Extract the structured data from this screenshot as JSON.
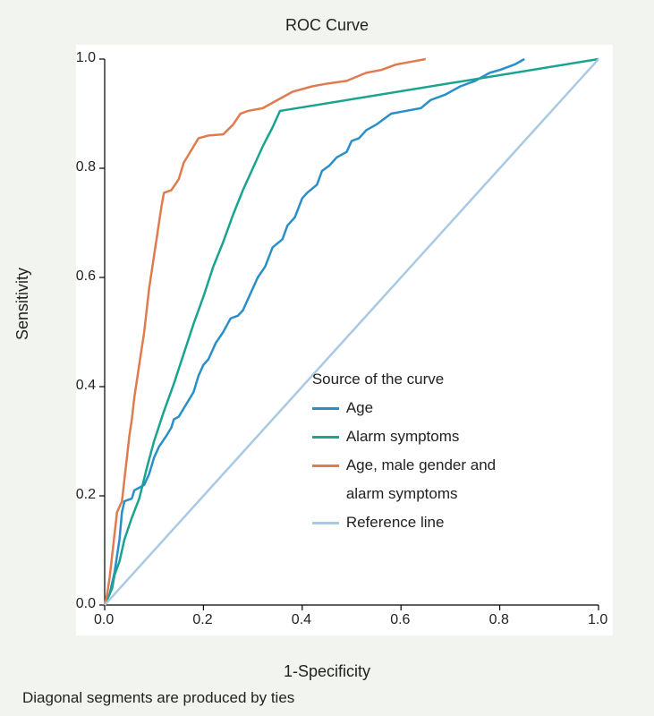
{
  "chart": {
    "type": "line",
    "title": "ROC Curve",
    "title_fontsize": 18,
    "xlabel": "1-Specificity",
    "ylabel": "Sensitivity",
    "label_fontsize": 18,
    "tick_fontsize": 16,
    "caption": "Diagonal segments are produced by ties",
    "caption_fontsize": 17,
    "background_color": "#f2f4f0",
    "plot_background": "#ffffff",
    "axis_color": "#000000",
    "xlim": [
      0.0,
      1.0
    ],
    "ylim": [
      0.0,
      1.0
    ],
    "x_ticks": [
      0.0,
      0.2,
      0.4,
      0.6,
      0.8,
      1.0
    ],
    "y_ticks": [
      0.0,
      0.2,
      0.4,
      0.6,
      0.8,
      1.0
    ],
    "tick_labels_x": [
      "0.0",
      "0.2",
      "0.4",
      "0.6",
      "0.8",
      "1.0"
    ],
    "tick_labels_y": [
      "0.0",
      "0.2",
      "0.4",
      "0.6",
      "0.8",
      "1.0"
    ],
    "line_width": 2.5,
    "legend": {
      "title": "Source of the curve",
      "items": [
        {
          "label": "Age",
          "color": "#2a8fc9"
        },
        {
          "label": "Alarm symptoms",
          "color": "#1aa38f"
        },
        {
          "label": "Age, male gender and",
          "color": "#e07b4f"
        },
        {
          "label_cont": "alarm symptoms"
        },
        {
          "label": "Reference line",
          "color": "#a9c9e4"
        }
      ],
      "fontsize": 17
    },
    "series": [
      {
        "name": "Age",
        "color": "#2a8fc9",
        "points": [
          [
            0.0,
            0.0
          ],
          [
            0.01,
            0.02
          ],
          [
            0.02,
            0.06
          ],
          [
            0.025,
            0.09
          ],
          [
            0.03,
            0.12
          ],
          [
            0.035,
            0.17
          ],
          [
            0.04,
            0.19
          ],
          [
            0.055,
            0.195
          ],
          [
            0.06,
            0.21
          ],
          [
            0.07,
            0.215
          ],
          [
            0.08,
            0.22
          ],
          [
            0.09,
            0.24
          ],
          [
            0.1,
            0.27
          ],
          [
            0.11,
            0.29
          ],
          [
            0.125,
            0.31
          ],
          [
            0.135,
            0.325
          ],
          [
            0.14,
            0.34
          ],
          [
            0.15,
            0.345
          ],
          [
            0.16,
            0.36
          ],
          [
            0.18,
            0.39
          ],
          [
            0.19,
            0.42
          ],
          [
            0.2,
            0.44
          ],
          [
            0.21,
            0.45
          ],
          [
            0.225,
            0.48
          ],
          [
            0.24,
            0.5
          ],
          [
            0.255,
            0.525
          ],
          [
            0.27,
            0.53
          ],
          [
            0.28,
            0.54
          ],
          [
            0.3,
            0.58
          ],
          [
            0.31,
            0.6
          ],
          [
            0.325,
            0.62
          ],
          [
            0.34,
            0.655
          ],
          [
            0.36,
            0.67
          ],
          [
            0.37,
            0.695
          ],
          [
            0.385,
            0.71
          ],
          [
            0.4,
            0.745
          ],
          [
            0.41,
            0.755
          ],
          [
            0.43,
            0.77
          ],
          [
            0.44,
            0.795
          ],
          [
            0.455,
            0.805
          ],
          [
            0.47,
            0.82
          ],
          [
            0.49,
            0.83
          ],
          [
            0.5,
            0.85
          ],
          [
            0.515,
            0.855
          ],
          [
            0.53,
            0.87
          ],
          [
            0.55,
            0.88
          ],
          [
            0.58,
            0.9
          ],
          [
            0.61,
            0.905
          ],
          [
            0.64,
            0.91
          ],
          [
            0.66,
            0.925
          ],
          [
            0.69,
            0.935
          ],
          [
            0.72,
            0.95
          ],
          [
            0.75,
            0.96
          ],
          [
            0.78,
            0.975
          ],
          [
            0.8,
            0.98
          ],
          [
            0.83,
            0.99
          ],
          [
            0.85,
            1.0
          ]
        ]
      },
      {
        "name": "Alarm symptoms",
        "color": "#1aa38f",
        "points": [
          [
            0.0,
            0.0
          ],
          [
            0.015,
            0.03
          ],
          [
            0.02,
            0.055
          ],
          [
            0.03,
            0.08
          ],
          [
            0.04,
            0.12
          ],
          [
            0.055,
            0.16
          ],
          [
            0.07,
            0.195
          ],
          [
            0.085,
            0.25
          ],
          [
            0.1,
            0.3
          ],
          [
            0.12,
            0.355
          ],
          [
            0.14,
            0.405
          ],
          [
            0.16,
            0.46
          ],
          [
            0.18,
            0.515
          ],
          [
            0.2,
            0.565
          ],
          [
            0.22,
            0.62
          ],
          [
            0.24,
            0.665
          ],
          [
            0.26,
            0.715
          ],
          [
            0.28,
            0.76
          ],
          [
            0.3,
            0.8
          ],
          [
            0.32,
            0.84
          ],
          [
            0.34,
            0.875
          ],
          [
            0.355,
            0.905
          ],
          [
            1.0,
            1.0
          ]
        ]
      },
      {
        "name": "Age, male gender and alarm symptoms",
        "color": "#e07b4f",
        "points": [
          [
            0.0,
            0.0
          ],
          [
            0.005,
            0.02
          ],
          [
            0.01,
            0.05
          ],
          [
            0.015,
            0.09
          ],
          [
            0.02,
            0.13
          ],
          [
            0.025,
            0.17
          ],
          [
            0.035,
            0.19
          ],
          [
            0.04,
            0.23
          ],
          [
            0.045,
            0.27
          ],
          [
            0.05,
            0.31
          ],
          [
            0.055,
            0.34
          ],
          [
            0.06,
            0.38
          ],
          [
            0.065,
            0.41
          ],
          [
            0.07,
            0.44
          ],
          [
            0.075,
            0.47
          ],
          [
            0.08,
            0.5
          ],
          [
            0.085,
            0.54
          ],
          [
            0.09,
            0.58
          ],
          [
            0.095,
            0.61
          ],
          [
            0.1,
            0.64
          ],
          [
            0.105,
            0.67
          ],
          [
            0.11,
            0.7
          ],
          [
            0.115,
            0.73
          ],
          [
            0.12,
            0.755
          ],
          [
            0.135,
            0.76
          ],
          [
            0.15,
            0.78
          ],
          [
            0.16,
            0.81
          ],
          [
            0.18,
            0.84
          ],
          [
            0.19,
            0.855
          ],
          [
            0.21,
            0.86
          ],
          [
            0.24,
            0.862
          ],
          [
            0.26,
            0.88
          ],
          [
            0.275,
            0.9
          ],
          [
            0.29,
            0.905
          ],
          [
            0.32,
            0.91
          ],
          [
            0.35,
            0.925
          ],
          [
            0.38,
            0.94
          ],
          [
            0.42,
            0.95
          ],
          [
            0.45,
            0.955
          ],
          [
            0.49,
            0.96
          ],
          [
            0.53,
            0.975
          ],
          [
            0.56,
            0.98
          ],
          [
            0.59,
            0.99
          ],
          [
            0.62,
            0.995
          ],
          [
            0.65,
            1.0
          ]
        ]
      },
      {
        "name": "Reference line",
        "color": "#a9c9e4",
        "points": [
          [
            0.0,
            0.0
          ],
          [
            1.0,
            1.0
          ]
        ]
      }
    ]
  }
}
